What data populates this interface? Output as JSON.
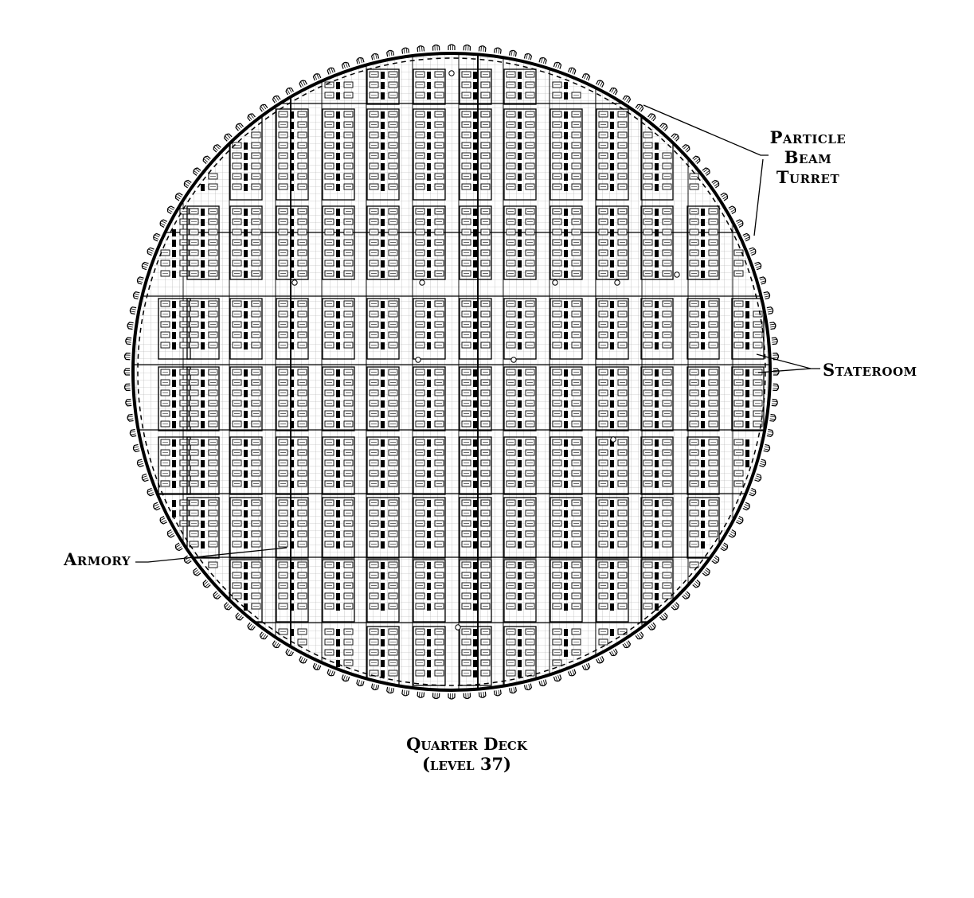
{
  "labels": {
    "particle_beam_turret": [
      "Particle",
      "Beam",
      "Turret"
    ],
    "stateroom": "Stateroom",
    "armory": "Armory"
  },
  "title": {
    "line1": "Quarter Deck",
    "line2": "(level 37)"
  },
  "colors": {
    "ink": "#000000",
    "grid": "#9a9a9a",
    "paper": "#ffffff"
  }
}
